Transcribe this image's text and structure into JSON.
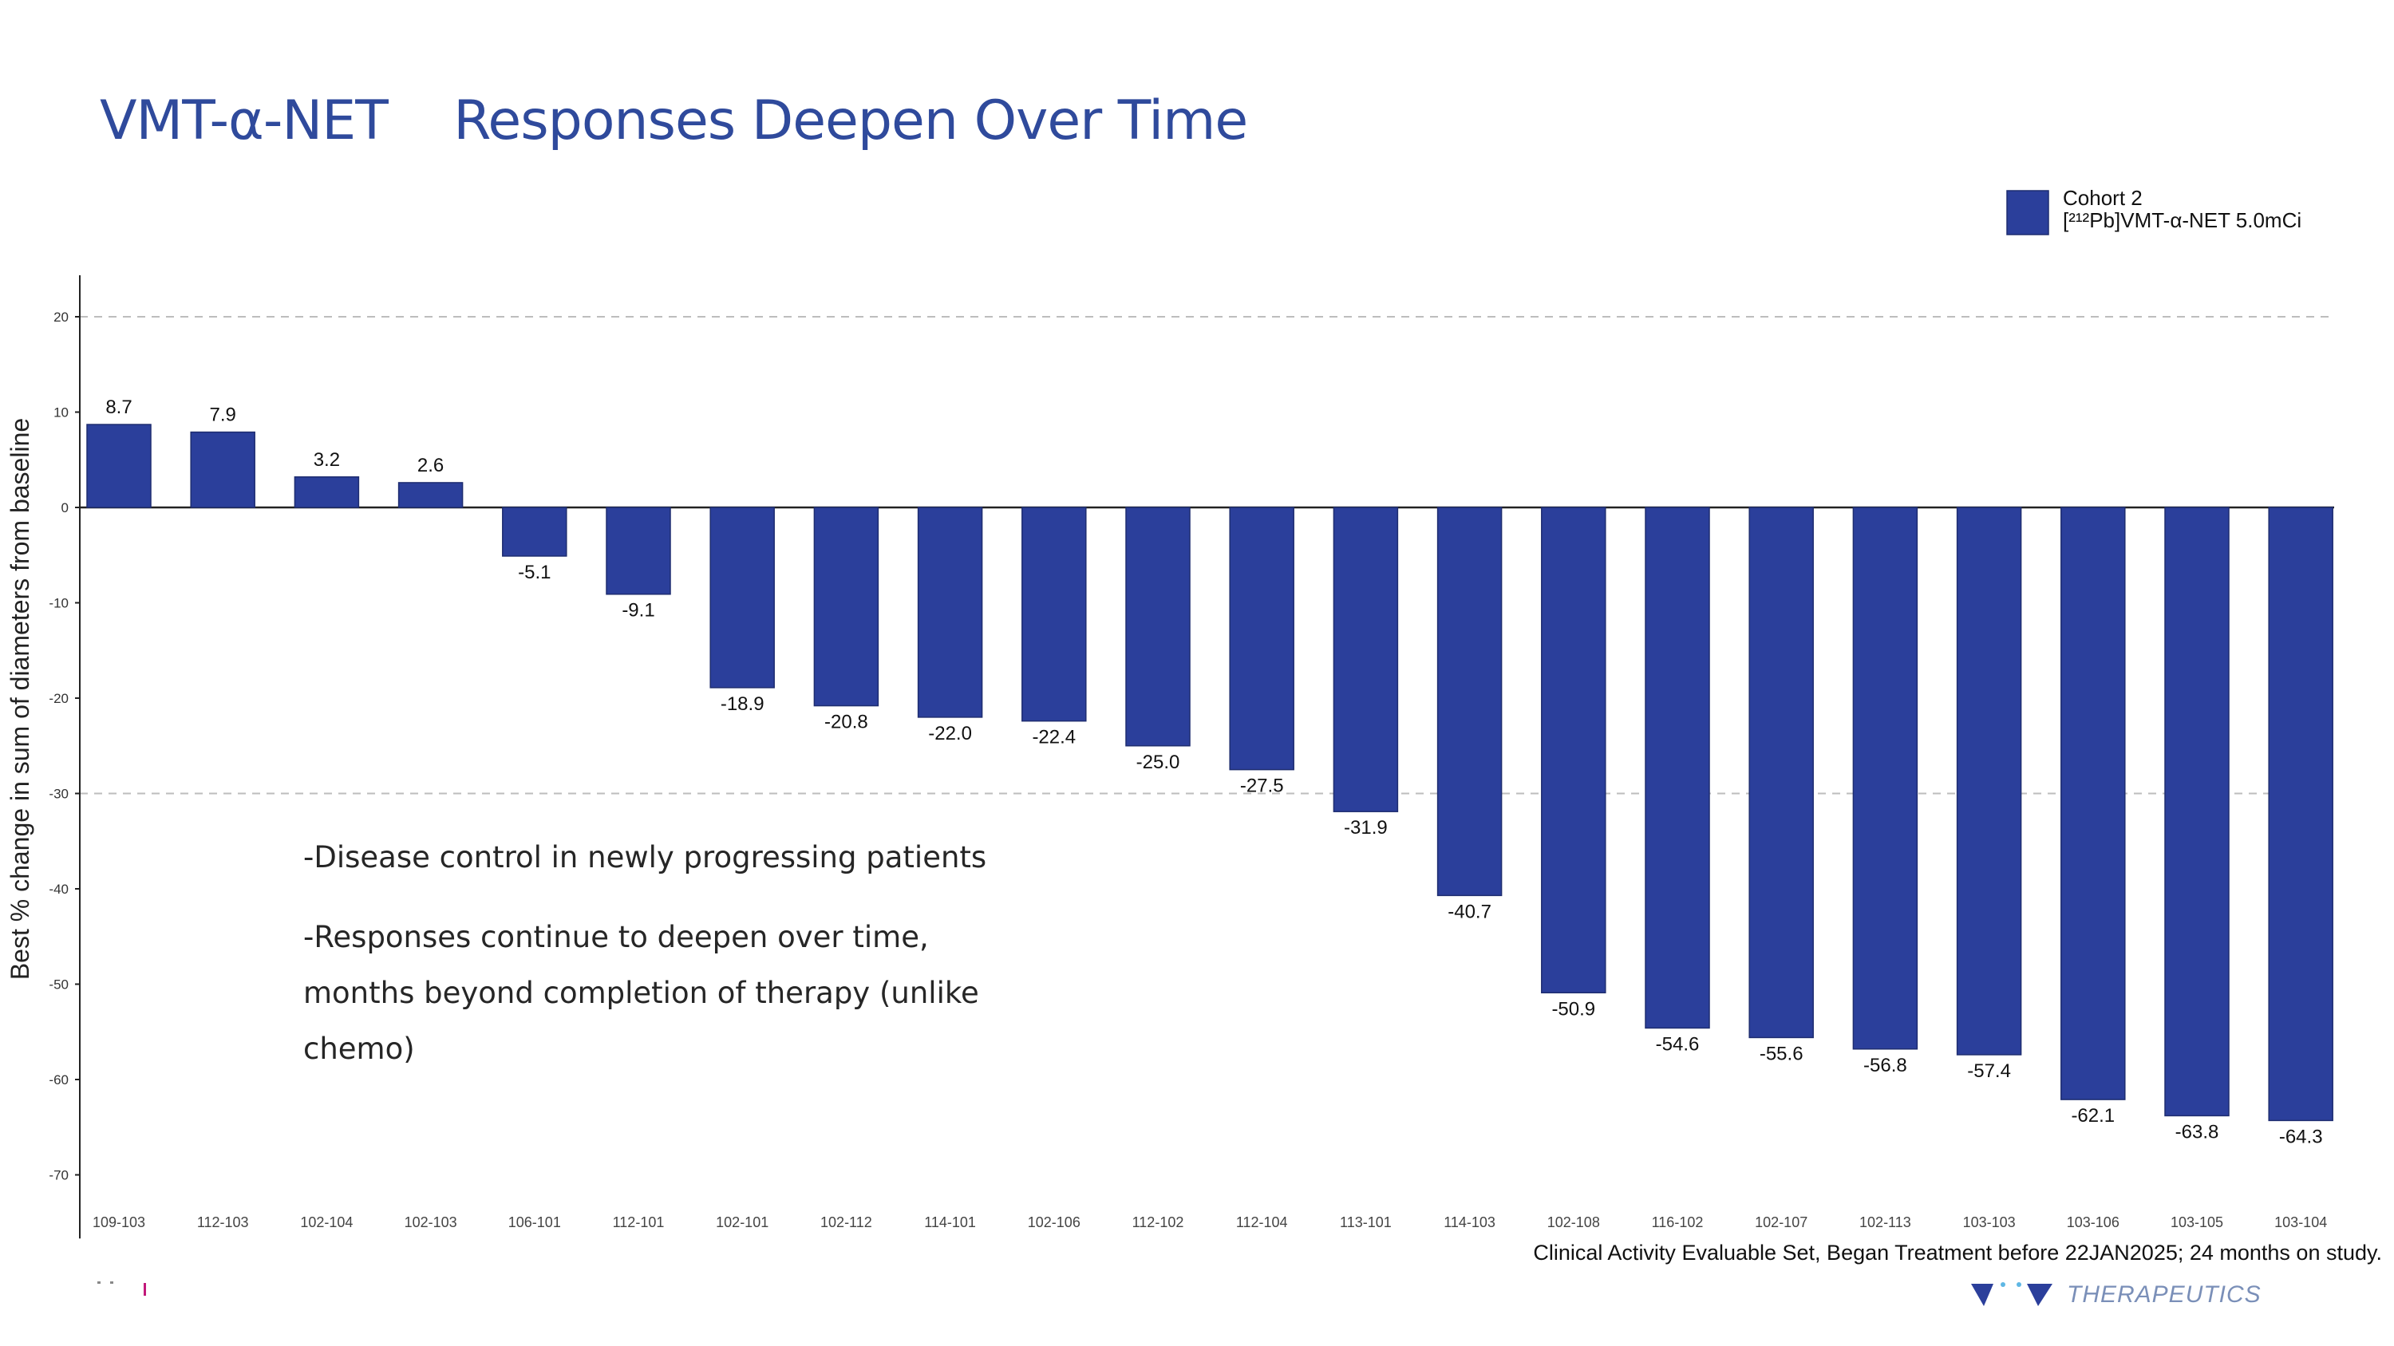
{
  "title": "VMT-α-NET    Responses Deepen Over Time",
  "bullets": [
    "-Disease control in newly progressing patients",
    "-Responses continue to deepen over time, months beyond completion of therapy (unlike chemo)"
  ],
  "footnote": "Clinical Activity Evaluable Set, Began Treatment before 22JAN2025; 24 months on study.",
  "logo": {
    "text": "THERAPEUTICS",
    "icon": "company-logo-icon"
  },
  "colors": {
    "bar": "#2b3f9b",
    "title": "#2f4a9c",
    "gridline": "#bdbdbd"
  },
  "chart_data": {
    "type": "bar",
    "categories": [
      "109-103",
      "112-103",
      "102-104",
      "102-103",
      "106-101",
      "112-101",
      "102-101",
      "102-112",
      "114-101",
      "102-106",
      "112-102",
      "112-104",
      "113-101",
      "114-103",
      "102-108",
      "116-102",
      "102-107",
      "102-113",
      "103-103",
      "103-106",
      "103-105",
      "103-104"
    ],
    "series": [
      {
        "name": "Cohort 2\n[²¹²Pb]VMT-α-NET 5.0mCi",
        "values": [
          8.7,
          7.9,
          3.2,
          2.6,
          -5.1,
          -9.1,
          -18.9,
          -20.8,
          -22.0,
          -22.4,
          -25.0,
          -27.5,
          -31.9,
          -40.7,
          -50.9,
          -54.6,
          -55.6,
          -56.8,
          -57.4,
          -62.1,
          -63.8,
          -64.3
        ]
      }
    ],
    "data_labels": [
      "8.7",
      "7.9",
      "3.2",
      "2.6",
      "-5.1",
      "-9.1",
      "-18.9",
      "-20.8",
      "-22.0",
      "-22.4",
      "-25.0",
      "-27.5",
      "-31.9",
      "-40.7",
      "-50.9",
      "-54.6",
      "-55.6",
      "-56.8",
      "-57.4",
      "-62.1",
      "-63.8",
      "-64.3"
    ],
    "ylabel": "Best % change in sum of diameters from baseline",
    "xlabel": "",
    "ylim": [
      -75,
      24
    ],
    "yticks": [
      20,
      10,
      0,
      -10,
      -20,
      -30,
      -40,
      -50,
      -60,
      -70
    ],
    "reference_lines": [
      20,
      -30
    ],
    "legend_position": "top-right"
  }
}
